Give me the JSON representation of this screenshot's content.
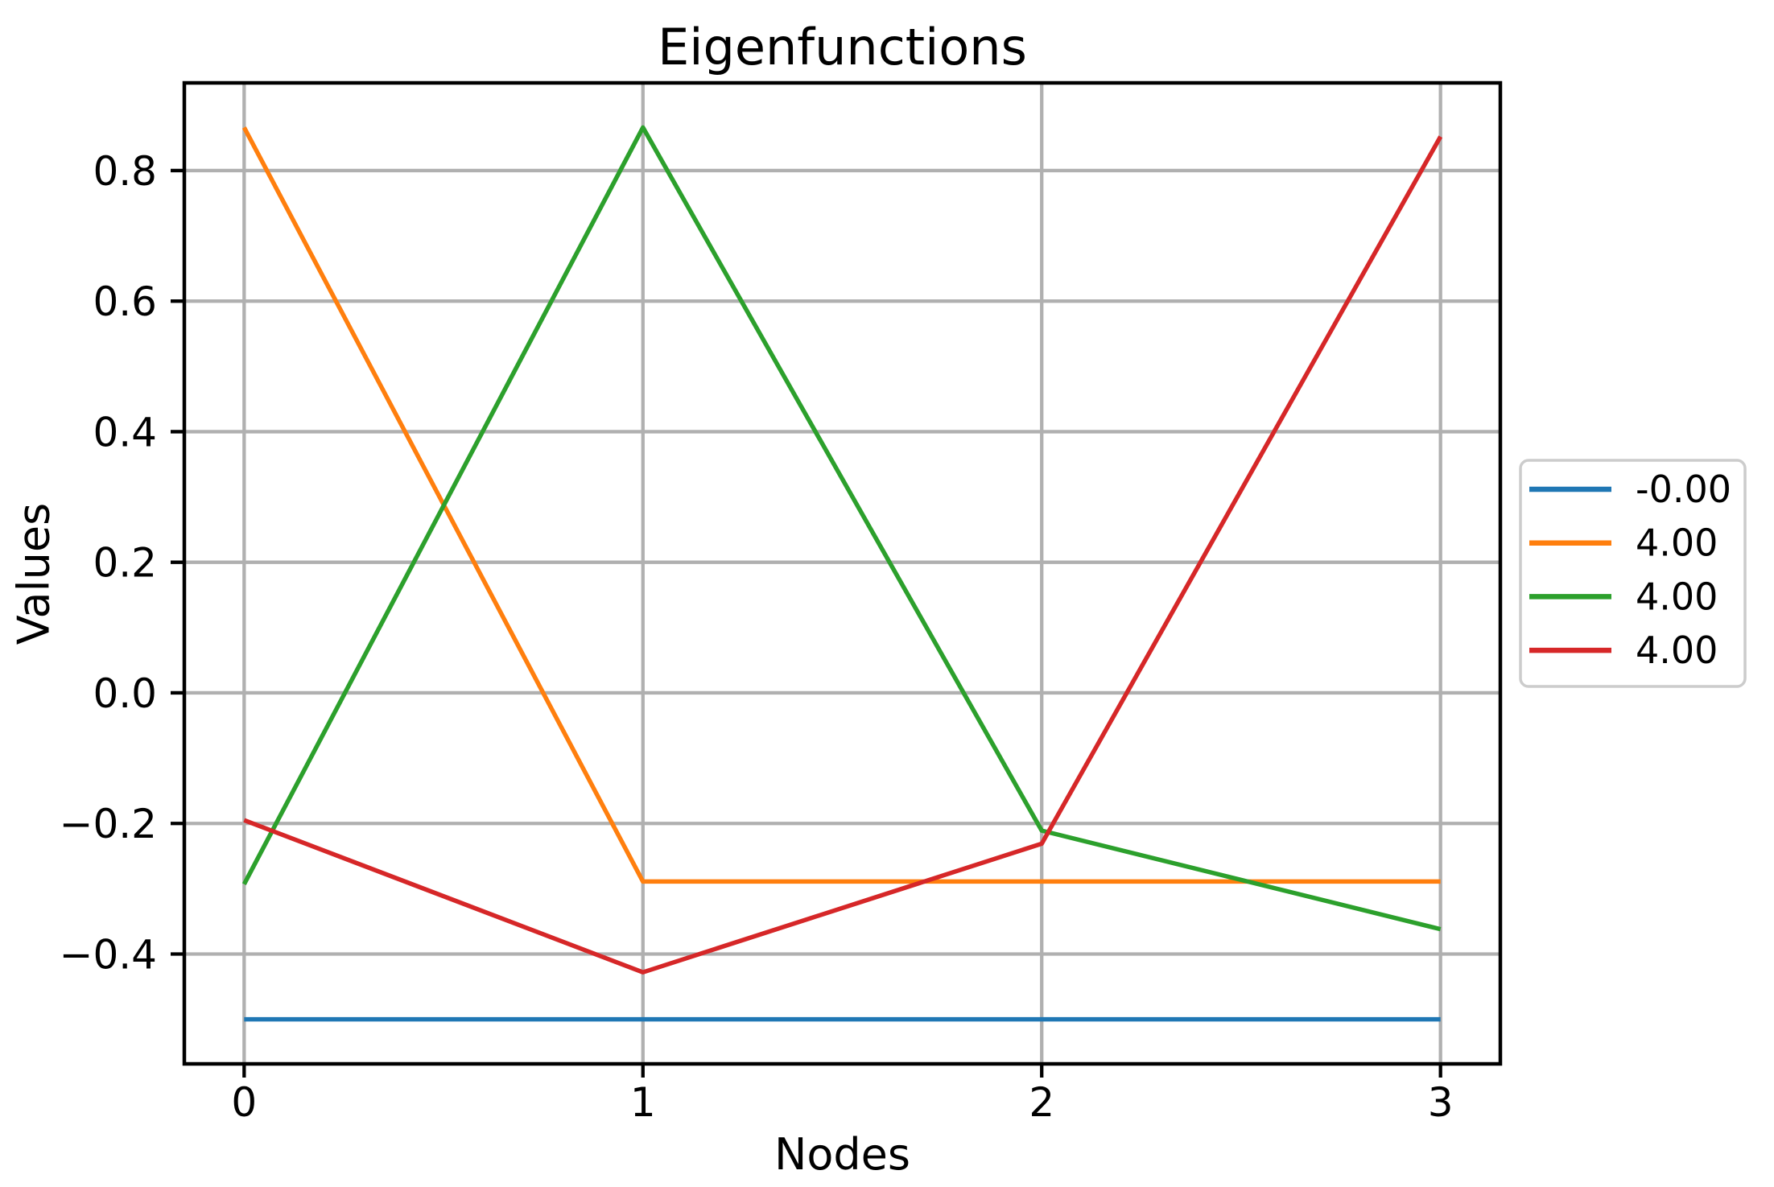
{
  "chart_data": {
    "type": "line",
    "title": "Eigenfunctions",
    "xlabel": "Nodes",
    "ylabel": "Values",
    "x": [
      0,
      1,
      2,
      3
    ],
    "x_ticks": [
      0,
      1,
      2,
      3
    ],
    "x_tick_labels": [
      "0",
      "1",
      "2",
      "3"
    ],
    "y_ticks": [
      0.8,
      0.6,
      0.4,
      0.2,
      0.0,
      -0.2,
      -0.4
    ],
    "y_tick_labels": [
      "0.8",
      "0.6",
      "0.4",
      "0.2",
      "0.0",
      "−0.2",
      "−0.4"
    ],
    "xlim": [
      -0.15,
      3.15
    ],
    "ylim": [
      -0.5683,
      0.9343
    ],
    "grid": true,
    "legend_position": "center-right-outside",
    "series": [
      {
        "name": "-0.00",
        "color": "#1f77b4",
        "values": [
          -0.5,
          -0.5,
          -0.5,
          -0.5
        ]
      },
      {
        "name": "4.00",
        "color": "#ff7f0e",
        "values": [
          0.866,
          -0.289,
          -0.289,
          -0.289
        ]
      },
      {
        "name": "4.00",
        "color": "#2ca02c",
        "values": [
          -0.293,
          0.866,
          -0.211,
          -0.362
        ]
      },
      {
        "name": "4.00",
        "color": "#d62728",
        "values": [
          -0.195,
          -0.428,
          -0.231,
          0.852
        ]
      }
    ],
    "style": {
      "grid_color": "#b0b0b0",
      "spine_color": "#000000",
      "text_color": "#000000",
      "legend_border_color": "#cccccc",
      "background": "#ffffff"
    }
  }
}
